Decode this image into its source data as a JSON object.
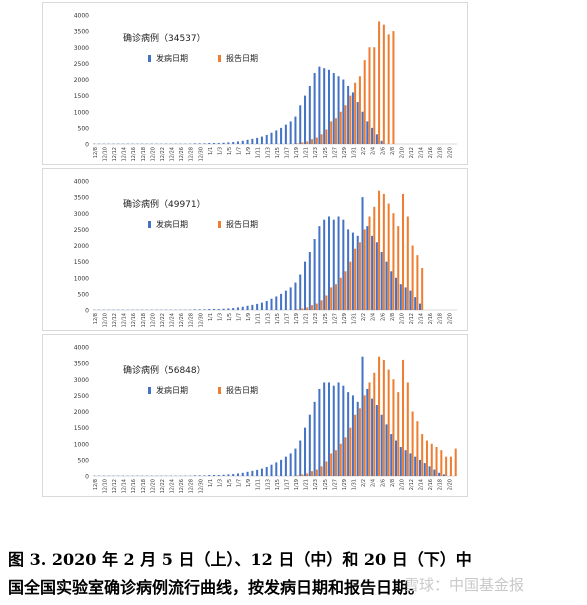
{
  "caption": {
    "line1": "图 3. 2020 年 2 月 5 日（上）、12 日（中）和 20 日（下）中",
    "line2": "国全国实验室确诊病例流行曲线，按发病日期和报告日期。"
  },
  "watermark": {
    "text": "雪球：中国基金报"
  },
  "colors": {
    "onset": "#4472c4",
    "report": "#ed7d31",
    "axis": "#d9d9d9",
    "text": "#333333"
  },
  "chart_data": [
    {
      "type": "bar",
      "title": "确诊病例（34537）",
      "legend": [
        "发病日期",
        "报告日期"
      ],
      "legend_position": "top-center",
      "ylim": [
        0,
        4000
      ],
      "yticks": [
        0,
        500,
        1000,
        1500,
        2000,
        2500,
        3000,
        3500,
        4000
      ],
      "xticks": [
        "12/8",
        "12/10",
        "12/12",
        "12/14",
        "12/16",
        "12/18",
        "12/20",
        "12/22",
        "12/24",
        "12/26",
        "12/28",
        "12/30",
        "1/1",
        "1/3",
        "1/5",
        "1/7",
        "1/9",
        "1/11",
        "1/13",
        "1/15",
        "1/17",
        "1/19",
        "1/21",
        "1/23",
        "1/25",
        "1/27",
        "1/29",
        "1/31",
        "2/2",
        "2/4",
        "2/6",
        "2/8",
        "2/10",
        "2/12",
        "2/14",
        "2/16",
        "2/18",
        "2/20"
      ],
      "categories": [
        "12/8",
        "12/9",
        "12/10",
        "12/11",
        "12/12",
        "12/13",
        "12/14",
        "12/15",
        "12/16",
        "12/17",
        "12/18",
        "12/19",
        "12/20",
        "12/21",
        "12/22",
        "12/23",
        "12/24",
        "12/25",
        "12/26",
        "12/27",
        "12/28",
        "12/29",
        "12/30",
        "12/31",
        "1/1",
        "1/2",
        "1/3",
        "1/4",
        "1/5",
        "1/6",
        "1/7",
        "1/8",
        "1/9",
        "1/10",
        "1/11",
        "1/12",
        "1/13",
        "1/14",
        "1/15",
        "1/16",
        "1/17",
        "1/18",
        "1/19",
        "1/20",
        "1/21",
        "1/22",
        "1/23",
        "1/24",
        "1/25",
        "1/26",
        "1/27",
        "1/28",
        "1/29",
        "1/30",
        "1/31",
        "2/1",
        "2/2",
        "2/3",
        "2/4",
        "2/5",
        "2/6",
        "2/7",
        "2/8",
        "2/9",
        "2/10",
        "2/11",
        "2/12",
        "2/13",
        "2/14",
        "2/15",
        "2/16",
        "2/17",
        "2/18",
        "2/19",
        "2/20",
        "2/21"
      ],
      "series": [
        {
          "name": "发病日期",
          "values": [
            10,
            10,
            10,
            10,
            10,
            10,
            10,
            10,
            10,
            10,
            10,
            10,
            10,
            10,
            10,
            10,
            10,
            10,
            10,
            10,
            10,
            20,
            20,
            20,
            30,
            30,
            30,
            40,
            50,
            60,
            80,
            100,
            130,
            160,
            190,
            230,
            280,
            350,
            420,
            500,
            600,
            700,
            850,
            1200,
            1500,
            1800,
            2200,
            2400,
            2350,
            2300,
            2200,
            2100,
            2000,
            1800,
            1600,
            1300,
            1000,
            700,
            500,
            300,
            100,
            0,
            0,
            0,
            0,
            0,
            0,
            0,
            0,
            0,
            0,
            0,
            0,
            0,
            0,
            0
          ]
        },
        {
          "name": "报告日期",
          "values": [
            0,
            0,
            0,
            0,
            0,
            0,
            0,
            0,
            0,
            0,
            0,
            0,
            0,
            0,
            0,
            0,
            0,
            0,
            0,
            0,
            0,
            0,
            0,
            0,
            0,
            0,
            0,
            0,
            0,
            0,
            0,
            0,
            0,
            0,
            0,
            0,
            0,
            0,
            0,
            0,
            0,
            0,
            20,
            50,
            80,
            150,
            200,
            300,
            450,
            700,
            800,
            1000,
            1200,
            1500,
            1900,
            2100,
            2600,
            3000,
            3000,
            3800,
            3700,
            3400,
            3500,
            0,
            0,
            0,
            0,
            0,
            0,
            0,
            0,
            0,
            0,
            0,
            0,
            0
          ]
        }
      ]
    },
    {
      "type": "bar",
      "title": "确诊病例（49971）",
      "legend": [
        "发病日期",
        "报告日期"
      ],
      "legend_position": "top-center",
      "ylim": [
        0,
        4000
      ],
      "yticks": [
        0,
        500,
        1000,
        1500,
        2000,
        2500,
        3000,
        3500,
        4000
      ],
      "xticks": [
        "12/8",
        "12/10",
        "12/12",
        "12/14",
        "12/16",
        "12/18",
        "12/20",
        "12/22",
        "12/24",
        "12/26",
        "12/28",
        "12/30",
        "1/1",
        "1/3",
        "1/5",
        "1/7",
        "1/9",
        "1/11",
        "1/13",
        "1/15",
        "1/17",
        "1/19",
        "1/21",
        "1/23",
        "1/25",
        "1/27",
        "1/29",
        "1/31",
        "2/2",
        "2/4",
        "2/6",
        "2/8",
        "2/10",
        "2/12",
        "2/14",
        "2/16",
        "2/18",
        "2/20"
      ],
      "categories": [
        "12/8",
        "12/9",
        "12/10",
        "12/11",
        "12/12",
        "12/13",
        "12/14",
        "12/15",
        "12/16",
        "12/17",
        "12/18",
        "12/19",
        "12/20",
        "12/21",
        "12/22",
        "12/23",
        "12/24",
        "12/25",
        "12/26",
        "12/27",
        "12/28",
        "12/29",
        "12/30",
        "12/31",
        "1/1",
        "1/2",
        "1/3",
        "1/4",
        "1/5",
        "1/6",
        "1/7",
        "1/8",
        "1/9",
        "1/10",
        "1/11",
        "1/12",
        "1/13",
        "1/14",
        "1/15",
        "1/16",
        "1/17",
        "1/18",
        "1/19",
        "1/20",
        "1/21",
        "1/22",
        "1/23",
        "1/24",
        "1/25",
        "1/26",
        "1/27",
        "1/28",
        "1/29",
        "1/30",
        "1/31",
        "2/1",
        "2/2",
        "2/3",
        "2/4",
        "2/5",
        "2/6",
        "2/7",
        "2/8",
        "2/9",
        "2/10",
        "2/11",
        "2/12",
        "2/13",
        "2/14",
        "2/15",
        "2/16",
        "2/17",
        "2/18",
        "2/19",
        "2/20",
        "2/21"
      ],
      "series": [
        {
          "name": "发病日期",
          "values": [
            10,
            10,
            10,
            10,
            10,
            10,
            10,
            10,
            10,
            10,
            10,
            10,
            10,
            10,
            10,
            10,
            10,
            10,
            10,
            10,
            10,
            20,
            20,
            20,
            30,
            30,
            30,
            40,
            50,
            60,
            80,
            100,
            130,
            160,
            190,
            230,
            280,
            350,
            420,
            500,
            600,
            700,
            850,
            1100,
            1500,
            1800,
            2200,
            2600,
            2800,
            2900,
            2800,
            2900,
            2800,
            2500,
            2400,
            2300,
            3500,
            2600,
            2300,
            2100,
            1800,
            1500,
            1200,
            1000,
            800,
            700,
            600,
            400,
            200,
            0,
            0,
            0,
            0,
            0,
            0,
            0
          ]
        },
        {
          "name": "报告日期",
          "values": [
            0,
            0,
            0,
            0,
            0,
            0,
            0,
            0,
            0,
            0,
            0,
            0,
            0,
            0,
            0,
            0,
            0,
            0,
            0,
            0,
            0,
            0,
            0,
            0,
            0,
            0,
            0,
            0,
            0,
            0,
            0,
            0,
            0,
            0,
            0,
            0,
            0,
            0,
            0,
            0,
            0,
            0,
            20,
            50,
            80,
            150,
            200,
            300,
            450,
            700,
            800,
            1000,
            1200,
            1500,
            1900,
            2100,
            2500,
            2900,
            3200,
            3700,
            3600,
            3300,
            3000,
            2600,
            3600,
            2900,
            2000,
            1700,
            1300,
            0,
            0,
            0,
            0,
            0,
            0,
            0
          ]
        }
      ]
    },
    {
      "type": "bar",
      "title": "确诊病例（56848）",
      "legend": [
        "发病日期",
        "报告日期"
      ],
      "legend_position": "top-center",
      "ylim": [
        0,
        4000
      ],
      "yticks": [
        0,
        500,
        1000,
        1500,
        2000,
        2500,
        3000,
        3500,
        4000
      ],
      "xticks": [
        "12/8",
        "12/10",
        "12/12",
        "12/14",
        "12/16",
        "12/18",
        "12/20",
        "12/22",
        "12/24",
        "12/26",
        "12/28",
        "12/30",
        "1/1",
        "1/3",
        "1/5",
        "1/7",
        "1/9",
        "1/11",
        "1/13",
        "1/15",
        "1/17",
        "1/19",
        "1/21",
        "1/23",
        "1/25",
        "1/27",
        "1/29",
        "1/31",
        "2/2",
        "2/4",
        "2/6",
        "2/8",
        "2/10",
        "2/12",
        "2/14",
        "2/16",
        "2/18",
        "2/20"
      ],
      "categories": [
        "12/8",
        "12/9",
        "12/10",
        "12/11",
        "12/12",
        "12/13",
        "12/14",
        "12/15",
        "12/16",
        "12/17",
        "12/18",
        "12/19",
        "12/20",
        "12/21",
        "12/22",
        "12/23",
        "12/24",
        "12/25",
        "12/26",
        "12/27",
        "12/28",
        "12/29",
        "12/30",
        "12/31",
        "1/1",
        "1/2",
        "1/3",
        "1/4",
        "1/5",
        "1/6",
        "1/7",
        "1/8",
        "1/9",
        "1/10",
        "1/11",
        "1/12",
        "1/13",
        "1/14",
        "1/15",
        "1/16",
        "1/17",
        "1/18",
        "1/19",
        "1/20",
        "1/21",
        "1/22",
        "1/23",
        "1/24",
        "1/25",
        "1/26",
        "1/27",
        "1/28",
        "1/29",
        "1/30",
        "1/31",
        "2/1",
        "2/2",
        "2/3",
        "2/4",
        "2/5",
        "2/6",
        "2/7",
        "2/8",
        "2/9",
        "2/10",
        "2/11",
        "2/12",
        "2/13",
        "2/14",
        "2/15",
        "2/16",
        "2/17",
        "2/18",
        "2/19",
        "2/20",
        "2/21"
      ],
      "series": [
        {
          "name": "发病日期",
          "values": [
            10,
            10,
            10,
            10,
            10,
            10,
            10,
            10,
            10,
            10,
            10,
            10,
            10,
            10,
            10,
            10,
            10,
            10,
            10,
            10,
            10,
            20,
            20,
            20,
            30,
            30,
            30,
            40,
            50,
            60,
            80,
            100,
            130,
            160,
            190,
            230,
            280,
            350,
            420,
            500,
            600,
            700,
            850,
            1100,
            1500,
            1900,
            2300,
            2700,
            2900,
            2900,
            2800,
            2900,
            2800,
            2600,
            2500,
            2300,
            3700,
            2700,
            2400,
            2200,
            1900,
            1600,
            1300,
            1100,
            900,
            800,
            700,
            600,
            500,
            400,
            300,
            200,
            100,
            50,
            0,
            0
          ]
        },
        {
          "name": "报告日期",
          "values": [
            0,
            0,
            0,
            0,
            0,
            0,
            0,
            0,
            0,
            0,
            0,
            0,
            0,
            0,
            0,
            0,
            0,
            0,
            0,
            0,
            0,
            0,
            0,
            0,
            0,
            0,
            0,
            0,
            0,
            0,
            0,
            0,
            0,
            0,
            0,
            0,
            0,
            0,
            0,
            0,
            0,
            0,
            20,
            50,
            80,
            150,
            200,
            300,
            450,
            700,
            800,
            1000,
            1200,
            1500,
            1900,
            2100,
            2500,
            2900,
            3200,
            3700,
            3600,
            3300,
            3000,
            2600,
            3600,
            2900,
            2000,
            1700,
            1300,
            1100,
            1000,
            900,
            800,
            600,
            600,
            850
          ]
        }
      ]
    }
  ]
}
